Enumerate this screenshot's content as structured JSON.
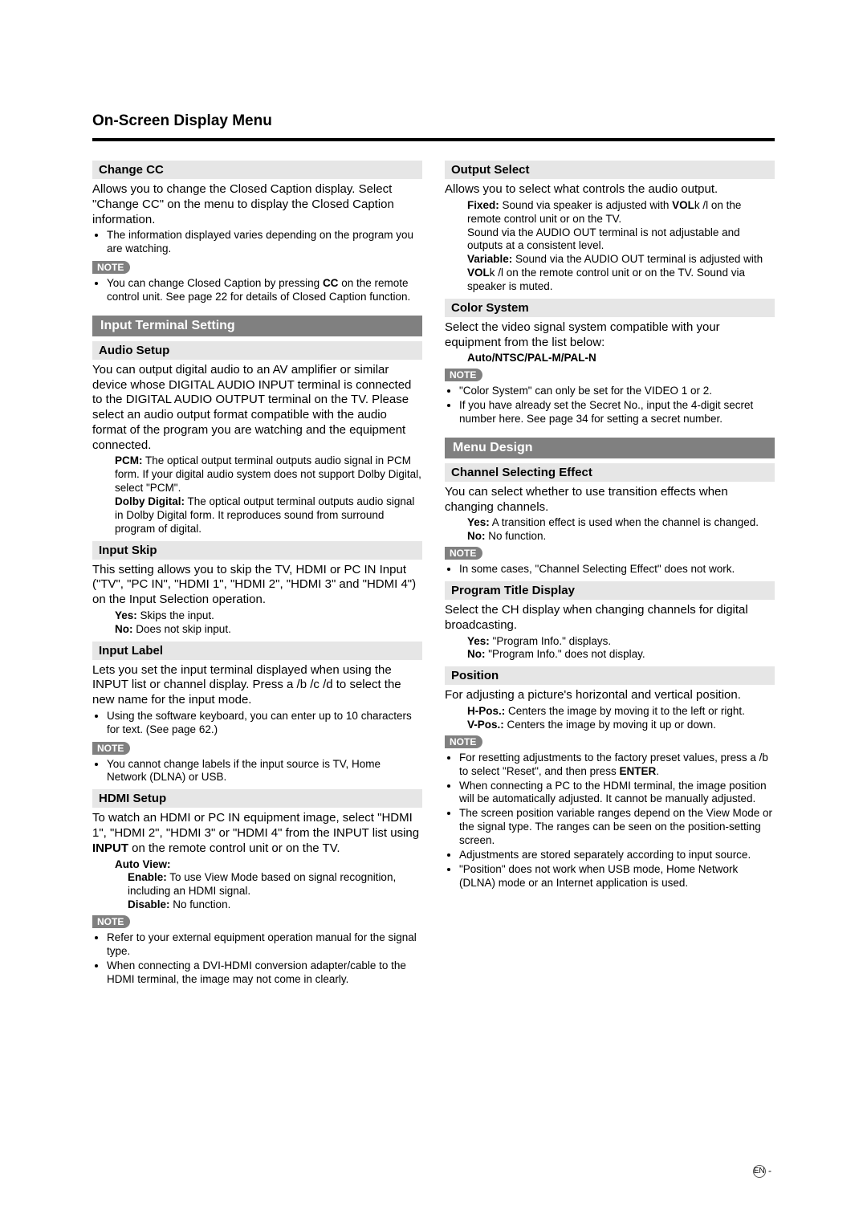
{
  "page": {
    "title": "On-Screen Display Menu",
    "footer_lang": "EN",
    "footer_dash": " -"
  },
  "note_label": "NOTE",
  "left": {
    "change_cc": {
      "heading": "Change CC",
      "p1": "Allows you to change the Closed Caption display. Select \"Change CC\" on the menu to display the Closed Caption information.",
      "b1": "The information displayed varies depending on the program you are watching.",
      "note_b1a": "You can change Closed Caption by pressing ",
      "note_b1_bold": "CC",
      "note_b1b": " on the remote control unit. See page 22 for details of Closed Caption function."
    },
    "input_terminal": {
      "bar": "Input Terminal Setting"
    },
    "audio_setup": {
      "heading": "Audio Setup",
      "p1": "You can output digital audio to an AV amplifier or similar device whose DIGITAL AUDIO INPUT terminal is connected to the DIGITAL AUDIO OUTPUT terminal on the TV. Please select an audio output format compatible with the audio format of the program you are watching and the equipment connected.",
      "pcm_label": "PCM:",
      "pcm_text": " The optical output terminal outputs audio signal in PCM form. If your digital audio system does not support Dolby Digital, select \"PCM\".",
      "dolby_label": "Dolby Digital:",
      "dolby_text": " The optical output terminal outputs audio signal in Dolby Digital form. It reproduces sound from surround program of digital."
    },
    "input_skip": {
      "heading": "Input Skip",
      "p1": "This setting allows you to skip the TV, HDMI or PC IN Input (\"TV\", \"PC IN\", \"HDMI 1\", \"HDMI 2\", \"HDMI 3\" and \"HDMI 4\") on the Input Selection operation.",
      "yes_label": "Yes:",
      "yes_text": " Skips the input.",
      "no_label": "No:",
      "no_text": " Does not skip input."
    },
    "input_label": {
      "heading": "Input Label",
      "p1a": "Lets you set the input terminal displayed when using the INPUT list or channel display. Press ",
      "keys": "a /b /c /d",
      "p1b": " to select the new name for the input mode.",
      "b1": "Using the software keyboard, you can enter up to 10 characters for text. (See page 62.)",
      "note_b1": "You cannot change labels if the input source is TV, Home Network (DLNA) or USB."
    },
    "hdmi_setup": {
      "heading": "HDMI Setup",
      "p1a": "To watch an HDMI or PC IN equipment image, select \"HDMI 1\", \"HDMI 2\", \"HDMI 3\" or \"HDMI 4\" from the INPUT list using ",
      "p1_bold": "INPUT",
      "p1b": " on the remote control unit or on the TV.",
      "auto_view": "Auto View:",
      "enable_label": "Enable:",
      "enable_text": " To use View Mode based on signal recognition, including an HDMI signal.",
      "disable_label": "Disable:",
      "disable_text": " No function.",
      "note_b1": "Refer to your external equipment operation manual for the signal type.",
      "note_b2": "When connecting a DVI-HDMI conversion adapter/cable to the HDMI terminal, the image may not come in clearly."
    }
  },
  "right": {
    "output_select": {
      "heading": "Output Select",
      "p1": "Allows you to select what controls the audio output.",
      "fixed_label": "Fixed:",
      "fixed_text_a": " Sound via speaker is adjusted with ",
      "fixed_vol": "VOL",
      "fixed_text_b": "k /l   on the remote control unit or on the TV.",
      "fixed_text_c": "Sound via the AUDIO OUT terminal is not adjustable and outputs at a consistent level.",
      "var_label": "Variable:",
      "var_text_a": " Sound via the AUDIO OUT terminal is adjusted with ",
      "var_vol": "VOL",
      "var_text_b": "k /l   on the remote control unit or on the TV. Sound via speaker is muted."
    },
    "color_system": {
      "heading": "Color System",
      "p1": "Select the video signal system compatible with your equipment from the list below:",
      "options": "Auto/NTSC/PAL-M/PAL-N",
      "note_b1": "\"Color System\" can only be set for the VIDEO 1 or 2.",
      "note_b2": "If you have already set the Secret No., input the 4-digit secret number here. See page 34 for setting a secret number."
    },
    "menu_design": {
      "bar": "Menu Design"
    },
    "ch_effect": {
      "heading": "Channel Selecting Effect",
      "p1": "You can select whether to use transition effects when changing channels.",
      "yes_label": "Yes:",
      "yes_text": " A transition effect is used when the channel is changed.",
      "no_label": "No:",
      "no_text": " No function.",
      "note_b1": "In some cases, \"Channel Selecting Effect\" does not work."
    },
    "prog_title": {
      "heading": "Program Title Display",
      "p1": "Select the CH display when changing channels for digital broadcasting.",
      "yes_label": "Yes:",
      "yes_text": " \"Program Info.\" displays.",
      "no_label": "No:",
      "no_text": " \"Program Info.\" does not display."
    },
    "position": {
      "heading": "Position",
      "p1": "For adjusting a picture's horizontal and vertical position.",
      "h_label": "H-Pos.:",
      "h_text": " Centers the image by moving it to the left or right.",
      "v_label": "V-Pos.:",
      "v_text": " Centers the image by moving it up or down.",
      "note_b1a": "For resetting adjustments to the factory preset values, press ",
      "note_b1_keys": "a /b",
      "note_b1b": " to select \"Reset\", and then press ",
      "note_b1_enter": "ENTER",
      "note_b1c": ".",
      "note_b2": "When connecting a PC to the HDMI terminal, the image position will be automatically adjusted. It cannot be manually adjusted.",
      "note_b3": "The screen position variable ranges depend on the View Mode or the signal type. The ranges can be seen on the position-setting screen.",
      "note_b4": "Adjustments are stored separately according to input source.",
      "note_b5": "\"Position\" does not work when USB mode, Home Network (DLNA) mode or an Internet application is used."
    }
  }
}
